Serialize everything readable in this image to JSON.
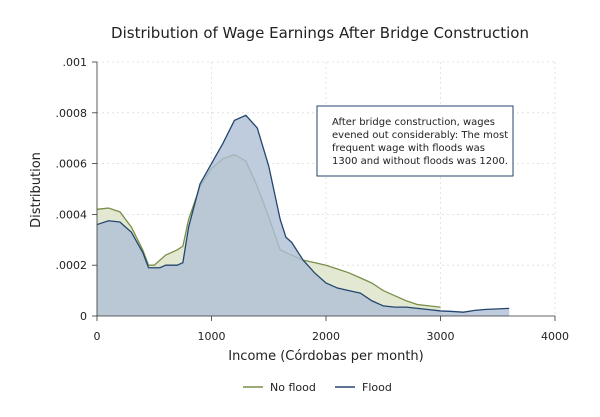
{
  "chart_data": {
    "type": "area",
    "title": "Distribution of Wage Earnings After Bridge Construction",
    "xlabel": "Income (Córdobas per month)",
    "ylabel": "Distribution",
    "xlim": [
      0,
      4000
    ],
    "ylim": [
      0,
      0.001
    ],
    "xticks": [
      0,
      1000,
      2000,
      3000,
      4000
    ],
    "xtick_labels": [
      "0",
      "1000",
      "2000",
      "3000",
      "4000"
    ],
    "yticks": [
      0,
      0.0002,
      0.0004,
      0.0006,
      0.0008,
      0.001
    ],
    "ytick_labels": [
      "0",
      ".0002",
      ".0004",
      ".0006",
      ".0008",
      ".001"
    ],
    "grid": true,
    "legend_position": "bottom",
    "annotation": {
      "lines": [
        "After bridge construction, wages",
        "evened out considerably: The most",
        "frequent wage with floods was",
        "1300 and without floods was 1200."
      ]
    },
    "series": [
      {
        "name": "No flood",
        "color": "#7a8f4a",
        "fill": "#e3e8d3",
        "x": [
          0,
          100,
          200,
          300,
          400,
          450,
          500,
          550,
          600,
          700,
          750,
          800,
          900,
          1000,
          1100,
          1200,
          1300,
          1400,
          1500,
          1600,
          1700,
          1800,
          1900,
          2000,
          2100,
          2200,
          2300,
          2400,
          2500,
          2600,
          2700,
          2800,
          2900,
          3000
        ],
        "y": [
          0.00042,
          0.000425,
          0.00041,
          0.00035,
          0.00026,
          0.0002,
          0.0002,
          0.00022,
          0.00024,
          0.00026,
          0.000275,
          0.00038,
          0.00051,
          0.00058,
          0.00062,
          0.000635,
          0.00061,
          0.00051,
          0.00039,
          0.00026,
          0.00024,
          0.00022,
          0.00021,
          0.0002,
          0.000185,
          0.00017,
          0.00015,
          0.00013,
          0.0001,
          8e-05,
          6e-05,
          4.5e-05,
          4e-05,
          3.5e-05
        ]
      },
      {
        "name": "Flood",
        "color": "#24466e",
        "fill": "#aebfd4",
        "x": [
          0,
          100,
          200,
          300,
          400,
          450,
          500,
          550,
          600,
          700,
          750,
          800,
          900,
          1000,
          1100,
          1200,
          1300,
          1400,
          1500,
          1600,
          1650,
          1700,
          1800,
          1900,
          2000,
          2100,
          2200,
          2300,
          2400,
          2500,
          2600,
          2700,
          2800,
          2900,
          3000,
          3100,
          3200,
          3300,
          3400,
          3500,
          3600
        ],
        "y": [
          0.00036,
          0.000375,
          0.00037,
          0.00033,
          0.00025,
          0.00019,
          0.00019,
          0.00019,
          0.0002,
          0.0002,
          0.00021,
          0.00035,
          0.00052,
          0.0006,
          0.00068,
          0.00077,
          0.00079,
          0.00074,
          0.00059,
          0.00038,
          0.00031,
          0.00029,
          0.00022,
          0.00017,
          0.00013,
          0.00011,
          0.0001,
          9e-05,
          6e-05,
          4e-05,
          3.5e-05,
          3.5e-05,
          3e-05,
          2.5e-05,
          2e-05,
          1.8e-05,
          1.5e-05,
          2.2e-05,
          2.6e-05,
          2.8e-05,
          3e-05
        ]
      }
    ]
  }
}
